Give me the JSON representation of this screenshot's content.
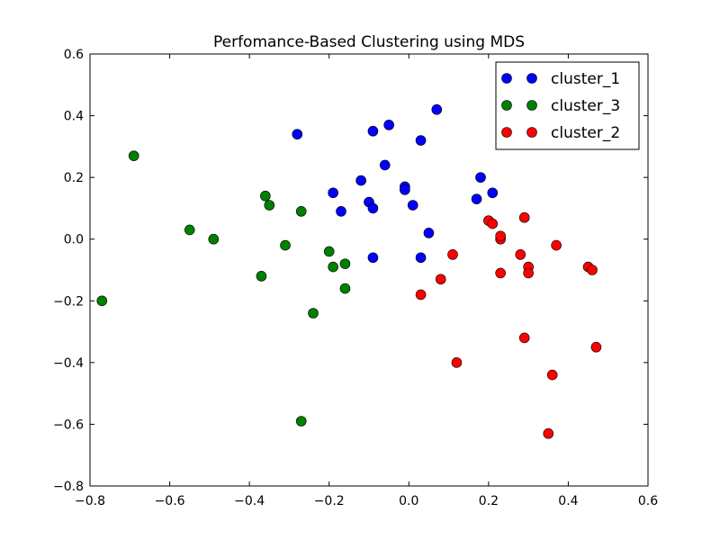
{
  "chart_data": {
    "type": "scatter",
    "title": "Perfomance-Based Clustering using MDS",
    "xlabel": "",
    "ylabel": "",
    "xlim": [
      -0.8,
      0.6
    ],
    "ylim": [
      -0.8,
      0.6
    ],
    "xticks": [
      "−0.8",
      "−0.6",
      "−0.4",
      "−0.2",
      "0.0",
      "0.2",
      "0.4",
      "0.6"
    ],
    "yticks": [
      "−0.8",
      "−0.6",
      "−0.4",
      "−0.2",
      "0.0",
      "0.2",
      "0.4",
      "0.6"
    ],
    "grid": false,
    "legend_position": "top-right",
    "series": [
      {
        "name": "cluster_1",
        "color": "#0000ff",
        "points": [
          [
            -0.28,
            0.34
          ],
          [
            -0.09,
            0.35
          ],
          [
            -0.05,
            0.37
          ],
          [
            0.03,
            0.32
          ],
          [
            0.07,
            0.42
          ],
          [
            -0.06,
            0.24
          ],
          [
            -0.12,
            0.19
          ],
          [
            -0.19,
            0.15
          ],
          [
            -0.17,
            0.09
          ],
          [
            -0.1,
            0.12
          ],
          [
            -0.09,
            0.1
          ],
          [
            -0.01,
            0.17
          ],
          [
            -0.01,
            0.16
          ],
          [
            0.01,
            0.11
          ],
          [
            0.18,
            0.2
          ],
          [
            0.17,
            0.13
          ],
          [
            0.21,
            0.15
          ],
          [
            0.05,
            0.02
          ],
          [
            -0.09,
            -0.06
          ],
          [
            0.03,
            -0.06
          ]
        ]
      },
      {
        "name": "cluster_3",
        "color": "#008000",
        "points": [
          [
            -0.69,
            0.27
          ],
          [
            -0.55,
            0.03
          ],
          [
            -0.49,
            0.0
          ],
          [
            -0.77,
            -0.2
          ],
          [
            -0.37,
            -0.12
          ],
          [
            -0.36,
            0.14
          ],
          [
            -0.35,
            0.11
          ],
          [
            -0.27,
            0.09
          ],
          [
            -0.31,
            -0.02
          ],
          [
            -0.2,
            -0.04
          ],
          [
            -0.19,
            -0.09
          ],
          [
            -0.16,
            -0.08
          ],
          [
            -0.16,
            -0.16
          ],
          [
            -0.24,
            -0.24
          ],
          [
            -0.27,
            -0.59
          ]
        ]
      },
      {
        "name": "cluster_2",
        "color": "#ff0000",
        "points": [
          [
            0.2,
            0.06
          ],
          [
            0.21,
            0.05
          ],
          [
            0.23,
            0.0
          ],
          [
            0.23,
            0.01
          ],
          [
            0.29,
            0.07
          ],
          [
            0.37,
            -0.02
          ],
          [
            0.11,
            -0.05
          ],
          [
            0.28,
            -0.05
          ],
          [
            0.3,
            -0.09
          ],
          [
            0.3,
            -0.11
          ],
          [
            0.23,
            -0.11
          ],
          [
            0.45,
            -0.09
          ],
          [
            0.46,
            -0.1
          ],
          [
            0.08,
            -0.13
          ],
          [
            0.03,
            -0.18
          ],
          [
            0.29,
            -0.32
          ],
          [
            0.47,
            -0.35
          ],
          [
            0.12,
            -0.4
          ],
          [
            0.36,
            -0.44
          ],
          [
            0.35,
            -0.63
          ]
        ]
      }
    ]
  }
}
